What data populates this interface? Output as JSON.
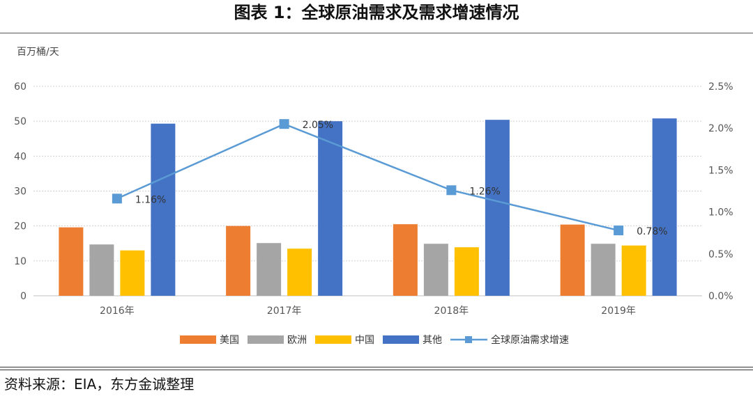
{
  "title": "图表 1：全球原油需求及需求增速情况",
  "source": "资料来源：EIA，东方金诚整理",
  "colors": {
    "美国": "#ED7D31",
    "欧洲": "#A5A5A5",
    "中国": "#FFC000",
    "其他": "#4472C4",
    "全球原油需求增速": "#5B9BD5"
  },
  "chart_data": {
    "type": "bar",
    "unit_left": "百万桶/天",
    "categories": [
      "2016年",
      "2017年",
      "2018年",
      "2019年"
    ],
    "series": [
      {
        "name": "美国",
        "values": [
          19.6,
          20.0,
          20.5,
          20.4
        ]
      },
      {
        "name": "欧洲",
        "values": [
          14.7,
          15.1,
          14.9,
          14.9
        ]
      },
      {
        "name": "中国",
        "values": [
          13.0,
          13.5,
          13.9,
          14.4
        ]
      },
      {
        "name": "其他",
        "values": [
          49.3,
          50.0,
          50.4,
          50.8
        ]
      }
    ],
    "line_series": {
      "name": "全球原油需求增速",
      "values": [
        1.16,
        2.05,
        1.26,
        0.78
      ],
      "labels": [
        "1.16%",
        "2.05%",
        "1.26%",
        "0.78%"
      ]
    },
    "y_left": {
      "ylim": [
        0,
        60
      ],
      "ticks": [
        "0",
        "10",
        "20",
        "30",
        "40",
        "50",
        "60"
      ]
    },
    "y_right": {
      "ylim": [
        0,
        2.5
      ],
      "ticks": [
        "0.0%",
        "0.5%",
        "1.0%",
        "1.5%",
        "2.0%",
        "2.5%"
      ]
    },
    "grid": true,
    "legend_position": "bottom"
  }
}
